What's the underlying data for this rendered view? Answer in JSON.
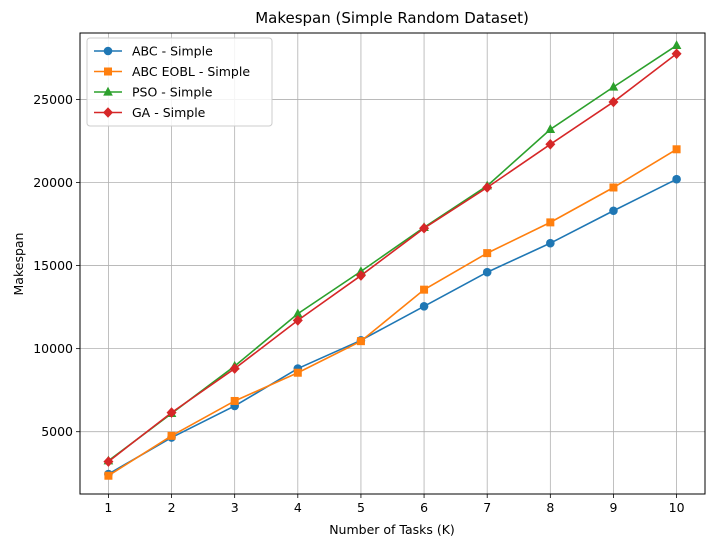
{
  "chart_data": {
    "type": "line",
    "title": "Makespan (Simple Random Dataset)",
    "xlabel": "Number of Tasks (K)",
    "ylabel": "Makespan",
    "x": [
      1,
      2,
      3,
      4,
      5,
      6,
      7,
      8,
      9,
      10
    ],
    "xlim": [
      0.55,
      10.45
    ],
    "ylim": [
      1250,
      29000
    ],
    "yticks": [
      5000,
      10000,
      15000,
      20000,
      25000
    ],
    "grid": true,
    "legend_position": "top-left",
    "series": [
      {
        "name": "ABC - Simple",
        "color": "#1f77b4",
        "marker": "circle",
        "values": [
          2450,
          4650,
          6550,
          8800,
          10500,
          12550,
          14600,
          16350,
          18300,
          20200
        ]
      },
      {
        "name": "ABC EOBL - Simple",
        "color": "#ff7f0e",
        "marker": "square",
        "values": [
          2350,
          4750,
          6850,
          8550,
          10450,
          13550,
          15750,
          17600,
          19700,
          22000
        ]
      },
      {
        "name": "PSO - Simple",
        "color": "#2ca02c",
        "marker": "triangle",
        "values": [
          3250,
          6100,
          8950,
          12100,
          14650,
          17300,
          19800,
          23200,
          25750,
          28250
        ]
      },
      {
        "name": "GA - Simple",
        "color": "#d62728",
        "marker": "diamond",
        "values": [
          3200,
          6150,
          8800,
          11700,
          14400,
          17250,
          19700,
          22300,
          24850,
          27750
        ]
      }
    ]
  }
}
